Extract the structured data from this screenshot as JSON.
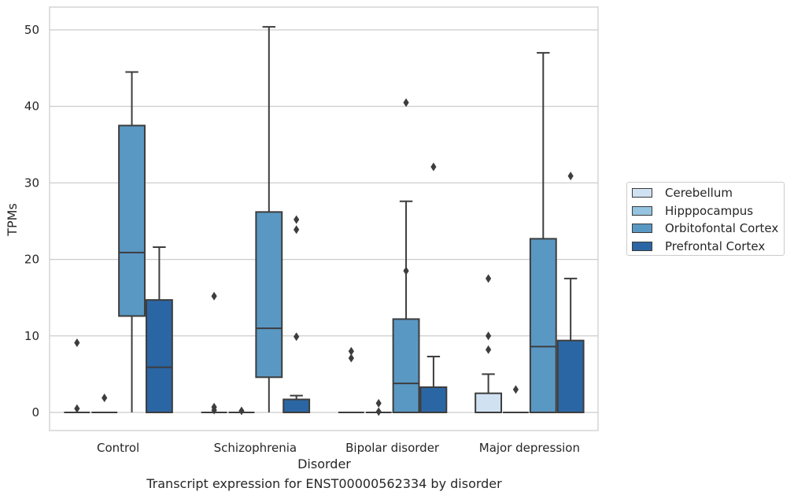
{
  "chart_data": {
    "type": "box",
    "title": "",
    "caption": "Transcript expression for ENST00000562334 by disorder",
    "xlabel": "Disorder",
    "ylabel": "TPMs",
    "ylim": [
      -2.5,
      53
    ],
    "yticks": [
      0,
      10,
      20,
      30,
      40,
      50
    ],
    "grid": "horizontal",
    "legend_position": "right",
    "categories": [
      "Control",
      "Schizophrenia",
      "Bipolar disorder",
      "Major depression"
    ],
    "series": [
      {
        "name": "Cerebellum",
        "color": "#d0e1f2",
        "boxes": [
          {
            "q1": 0,
            "median": 0,
            "q3": 0,
            "whislo": 0,
            "whishi": 0,
            "fliers": [
              0.5,
              9.1
            ]
          },
          {
            "q1": 0,
            "median": 0,
            "q3": 0,
            "whislo": 0,
            "whishi": 0,
            "fliers": [
              0.3,
              0.7,
              15.2
            ]
          },
          {
            "q1": 0,
            "median": 0,
            "q3": 0,
            "whislo": 0,
            "whishi": 0,
            "fliers": [
              7.1,
              8.0
            ]
          },
          {
            "q1": 0,
            "median": 0,
            "q3": 2.5,
            "whislo": 0,
            "whishi": 5.0,
            "fliers": [
              8.2,
              10.0,
              17.5
            ]
          }
        ]
      },
      {
        "name": "Hipppocampus",
        "color": "#94c4df",
        "boxes": [
          {
            "q1": 0,
            "median": 0,
            "q3": 0,
            "whislo": 0,
            "whishi": 0,
            "fliers": [
              1.9
            ]
          },
          {
            "q1": 0,
            "median": 0,
            "q3": 0,
            "whislo": 0,
            "whishi": 0,
            "fliers": [
              0.2
            ]
          },
          {
            "q1": 0,
            "median": 0,
            "q3": 0,
            "whislo": 0,
            "whishi": 0,
            "fliers": [
              0.1,
              1.2
            ]
          },
          {
            "q1": 0,
            "median": 0,
            "q3": 0,
            "whislo": 0,
            "whishi": 0,
            "fliers": [
              3.0
            ]
          }
        ]
      },
      {
        "name": "Orbitofontal Cortex",
        "color": "#5a98c4",
        "boxes": [
          {
            "q1": 12.6,
            "median": 20.9,
            "q3": 37.5,
            "whislo": 0,
            "whishi": 44.5,
            "fliers": []
          },
          {
            "q1": 4.6,
            "median": 11.0,
            "q3": 26.2,
            "whislo": 0,
            "whishi": 50.4,
            "fliers": []
          },
          {
            "q1": 0,
            "median": 3.8,
            "q3": 12.2,
            "whislo": 0,
            "whishi": 27.6,
            "fliers": [
              18.5,
              40.5
            ]
          },
          {
            "q1": 0,
            "median": 8.6,
            "q3": 22.7,
            "whislo": 0,
            "whishi": 47.0,
            "fliers": []
          }
        ]
      },
      {
        "name": "Prefrontal Cortex",
        "color": "#2b66a4",
        "boxes": [
          {
            "q1": 0,
            "median": 5.9,
            "q3": 14.7,
            "whislo": 0,
            "whishi": 21.6,
            "fliers": []
          },
          {
            "q1": 0,
            "median": 0,
            "q3": 1.7,
            "whislo": 0,
            "whishi": 2.2,
            "fliers": [
              9.9,
              23.9,
              25.2
            ]
          },
          {
            "q1": 0,
            "median": 0,
            "q3": 3.3,
            "whislo": 0,
            "whishi": 7.3,
            "fliers": [
              32.1
            ]
          },
          {
            "q1": 0,
            "median": 0,
            "q3": 9.4,
            "whislo": 0,
            "whishi": 17.5,
            "fliers": [
              30.9
            ]
          }
        ]
      }
    ]
  }
}
